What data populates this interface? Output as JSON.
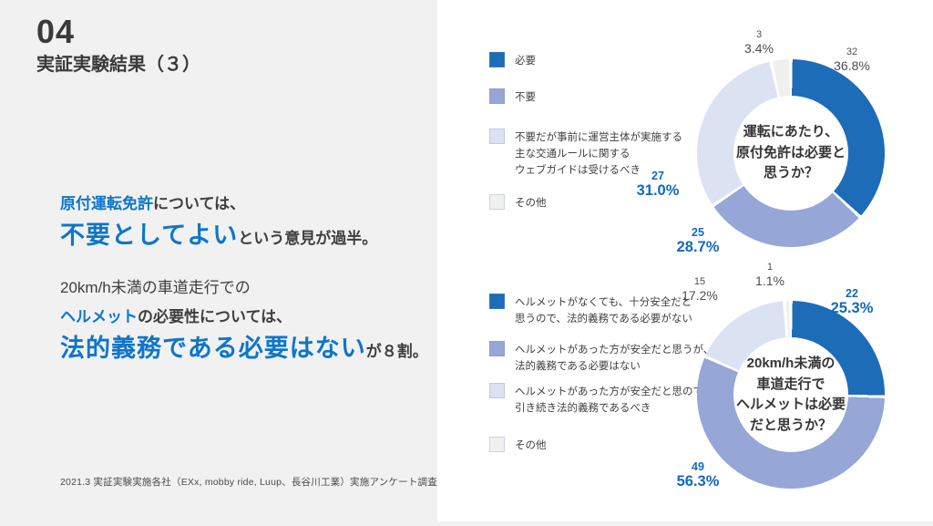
{
  "page": {
    "section_number": "04",
    "title": "実証実験結果（３）",
    "footnote": "2021.3 実証実験実施各社（EXx, mobby ride, Luup、長谷川工業）実施アンケート調査"
  },
  "summary": {
    "p1_highlight": "原付運転免許",
    "p1_rest1": "については、",
    "p1_big": "不要としてよい",
    "p1_rest2": "という意見が過半。",
    "p2_line1": "20km/h未満の車道走行での",
    "p2_highlight": "ヘルメット",
    "p2_rest1": "の必要性については、",
    "p2_big": "法的義務である必要はない",
    "p2_rest2": "が８割。"
  },
  "colors": {
    "page_background": "#f1f1f2",
    "panel_background": "#ffffff",
    "accent_blue_text": "#0d76ca",
    "label_blue": "#1269c2",
    "label_gray": "#4f4f4f",
    "slice_dark_blue": "#1d6cb8",
    "slice_medium_blue": "#95a6d7",
    "slice_light_blue": "#dbe2f2",
    "slice_other_gray": "#f0f0ee"
  },
  "chart_data": [
    {
      "type": "pie",
      "subtype": "donut",
      "title": "運転にあたり、原付免許は必要と思うか？",
      "center_lines": [
        "運転にあたり、",
        "原付免許は必要と",
        "思うか？"
      ],
      "legend_position": "left",
      "start_angle_deg": 0,
      "direction": "clockwise",
      "slices": [
        {
          "label": "必要",
          "legend_lines": [
            "必要"
          ],
          "count": 32,
          "pct": "36.8%",
          "value": 36.8,
          "color": "#1d6cb8",
          "emphasis": false
        },
        {
          "label": "不要",
          "legend_lines": [
            "不要"
          ],
          "count": 25,
          "pct": "28.7%",
          "value": 28.7,
          "color": "#95a6d7",
          "emphasis": true
        },
        {
          "label": "不要だが事前に運営主体が実施する主な交通ルールに関するウェブガイドは受けるべき",
          "legend_lines": [
            "不要だが事前に運営主体が実施する",
            "主な交通ルールに関する",
            "ウェブガイドは受けるべき"
          ],
          "count": 27,
          "pct": "31.0%",
          "value": 31.0,
          "color": "#dbe2f2",
          "emphasis": true
        },
        {
          "label": "その他",
          "legend_lines": [
            "その他"
          ],
          "count": 3,
          "pct": "3.4%",
          "value": 3.4,
          "color": "#f0f0ee",
          "emphasis": false
        }
      ]
    },
    {
      "type": "pie",
      "subtype": "donut",
      "title": "20km/h未満の車道走行でヘルメットは必要だと思うか？",
      "center_lines": [
        "20km/h未満の",
        "車道走行で",
        "ヘルメットは必要",
        "だと思うか？"
      ],
      "legend_position": "left",
      "start_angle_deg": 0,
      "direction": "clockwise",
      "slices": [
        {
          "label": "ヘルメットがなくても、十分安全だと思うので、法的義務である必要がない",
          "legend_lines": [
            "ヘルメットがなくても、十分安全だと",
            "思うので、法的義務である必要がない"
          ],
          "count": 22,
          "pct": "25.3%",
          "value": 25.3,
          "color": "#1d6cb8",
          "emphasis": true
        },
        {
          "label": "ヘルメットがあった方が安全だと思うが、法的義務である必要はない",
          "legend_lines": [
            "ヘルメットがあった方が安全だと思うが、",
            "法的義務である必要はない"
          ],
          "count": 49,
          "pct": "56.3%",
          "value": 56.3,
          "color": "#95a6d7",
          "emphasis": true
        },
        {
          "label": "ヘルメットがあった方が安全だと思ので、引き続き法的義務であるべき",
          "legend_lines": [
            "ヘルメットがあった方が安全だと思ので、",
            "引き続き法的義務であるべき"
          ],
          "count": 15,
          "pct": "17.2%",
          "value": 17.2,
          "color": "#dbe2f2",
          "emphasis": false
        },
        {
          "label": "その他",
          "legend_lines": [
            "その他"
          ],
          "count": 1,
          "pct": "1.1%",
          "value": 1.1,
          "color": "#f0f0ee",
          "emphasis": false
        }
      ]
    }
  ]
}
